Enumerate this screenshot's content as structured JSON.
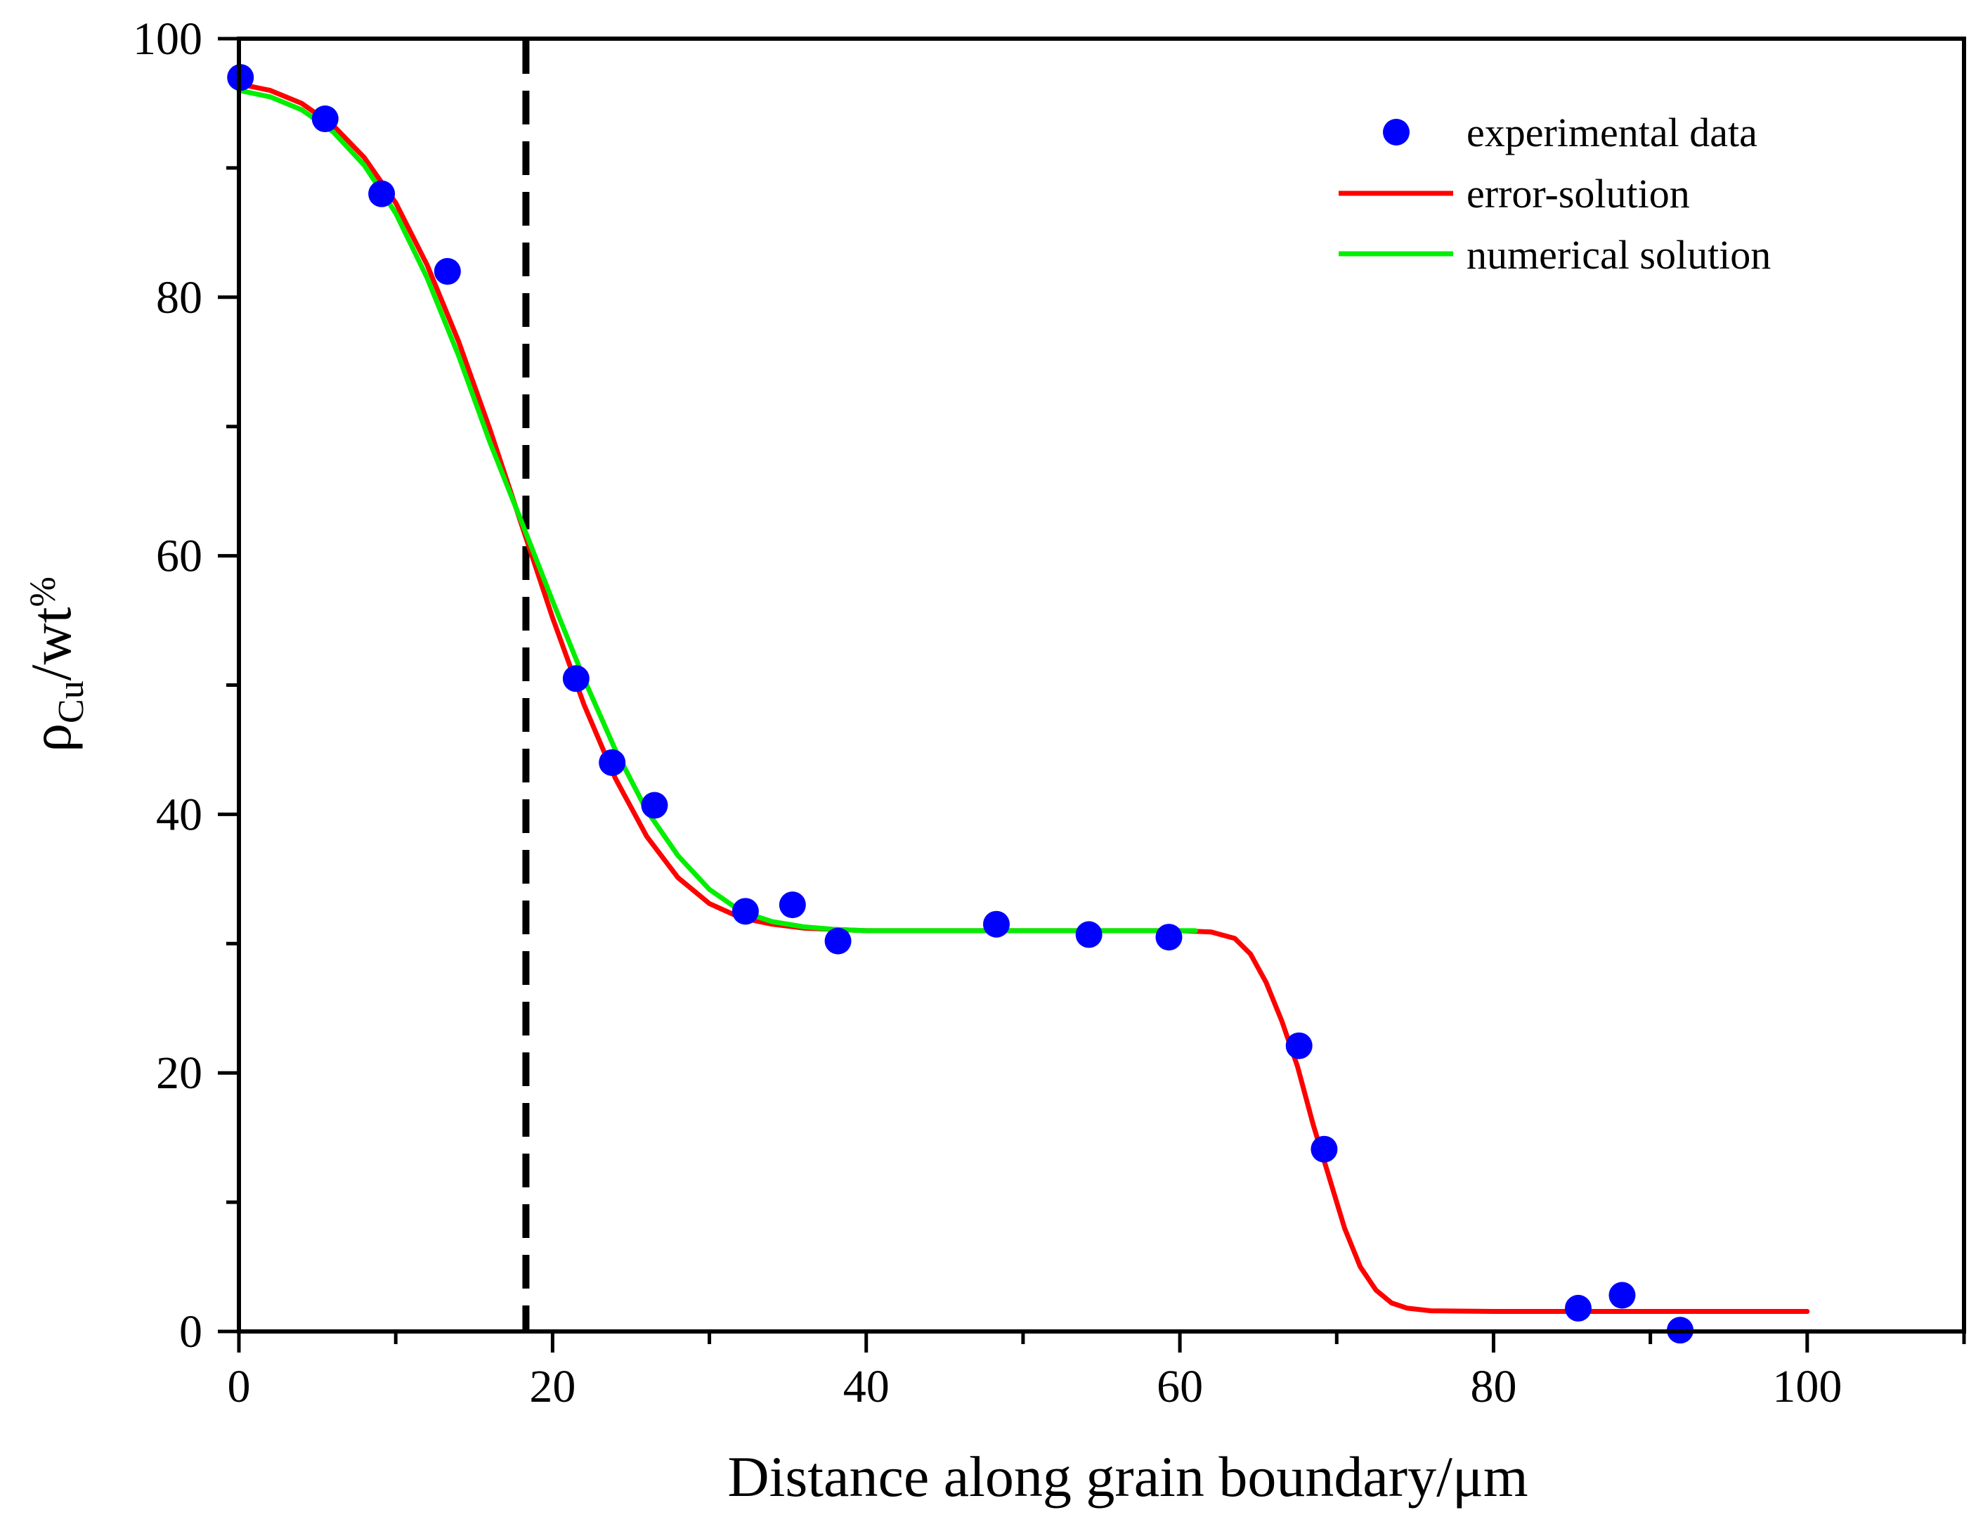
{
  "chart_data": {
    "type": "line",
    "title": "",
    "xlabel": "Distance along grain boundary/μm",
    "ylabel": {
      "symbol": "ρ",
      "subscript": "Cu",
      "unit": "/wt",
      "percent": "%"
    },
    "xlim": [
      0,
      110
    ],
    "ylim": [
      0,
      100
    ],
    "xticks": [
      0,
      20,
      40,
      60,
      80,
      100
    ],
    "xtick_labels": [
      "0",
      "20",
      "40",
      "60",
      "80",
      "100"
    ],
    "yticks": [
      0,
      20,
      40,
      60,
      80,
      100
    ],
    "ytick_labels": [
      "0",
      "20",
      "40",
      "60",
      "80",
      "100"
    ],
    "x_minor_step": 10,
    "y_minor_step": 10,
    "grid": false,
    "legend_position": "top-right",
    "reference_line": {
      "x": 18.3,
      "style": "dashed",
      "color": "#000000"
    },
    "series": [
      {
        "name": "experimental data",
        "kind": "scatter",
        "color": "#0000ff",
        "points": [
          [
            0.1,
            97.0
          ],
          [
            5.5,
            93.8
          ],
          [
            9.1,
            88.0
          ],
          [
            13.3,
            82.0
          ],
          [
            21.5,
            50.5
          ],
          [
            23.8,
            44.0
          ],
          [
            26.5,
            40.7
          ],
          [
            32.3,
            32.5
          ],
          [
            35.3,
            33.0
          ],
          [
            38.2,
            30.2
          ],
          [
            48.3,
            31.5
          ],
          [
            54.2,
            30.7
          ],
          [
            59.3,
            30.5
          ],
          [
            67.6,
            22.1
          ],
          [
            69.2,
            14.1
          ],
          [
            85.4,
            1.8
          ],
          [
            88.2,
            2.8
          ],
          [
            91.9,
            0.1
          ]
        ]
      },
      {
        "name": "error-solution",
        "kind": "line",
        "color": "#ff0000",
        "points": [
          [
            0,
            96.5
          ],
          [
            2,
            96.0
          ],
          [
            4,
            95.0
          ],
          [
            6,
            93.3
          ],
          [
            8,
            90.8
          ],
          [
            10,
            87.3
          ],
          [
            12,
            82.5
          ],
          [
            14,
            76.6
          ],
          [
            16,
            69.8
          ],
          [
            18,
            62.5
          ],
          [
            20,
            55.2
          ],
          [
            22,
            48.5
          ],
          [
            24,
            42.8
          ],
          [
            26,
            38.3
          ],
          [
            28,
            35.1
          ],
          [
            30,
            33.1
          ],
          [
            32,
            32.0
          ],
          [
            34,
            31.5
          ],
          [
            36,
            31.2
          ],
          [
            38,
            31.1
          ],
          [
            40,
            31.0
          ],
          [
            50,
            31.0
          ],
          [
            60,
            31.0
          ],
          [
            62,
            30.9
          ],
          [
            63.5,
            30.4
          ],
          [
            64.5,
            29.2
          ],
          [
            65.5,
            27.0
          ],
          [
            66.5,
            24.0
          ],
          [
            67.5,
            20.5
          ],
          [
            68.5,
            16.0
          ],
          [
            69.5,
            12.0
          ],
          [
            70.5,
            8.0
          ],
          [
            71.5,
            5.0
          ],
          [
            72.5,
            3.2
          ],
          [
            73.5,
            2.2
          ],
          [
            74.5,
            1.8
          ],
          [
            76,
            1.6
          ],
          [
            80,
            1.55
          ],
          [
            90,
            1.55
          ],
          [
            100,
            1.55
          ]
        ]
      },
      {
        "name": "numerical solution",
        "kind": "line",
        "color": "#00ee00",
        "points": [
          [
            0,
            96.0
          ],
          [
            2,
            95.5
          ],
          [
            4,
            94.5
          ],
          [
            6,
            92.8
          ],
          [
            8,
            90.2
          ],
          [
            10,
            86.5
          ],
          [
            12,
            81.5
          ],
          [
            14,
            75.5
          ],
          [
            16,
            68.8
          ],
          [
            18,
            62.7
          ],
          [
            20,
            56.5
          ],
          [
            22,
            50.5
          ],
          [
            24,
            45.0
          ],
          [
            26,
            40.3
          ],
          [
            28,
            36.8
          ],
          [
            30,
            34.2
          ],
          [
            32,
            32.5
          ],
          [
            34,
            31.7
          ],
          [
            36,
            31.3
          ],
          [
            38,
            31.1
          ],
          [
            40,
            31.0
          ],
          [
            50,
            31.0
          ],
          [
            61,
            31.0
          ]
        ]
      }
    ]
  }
}
